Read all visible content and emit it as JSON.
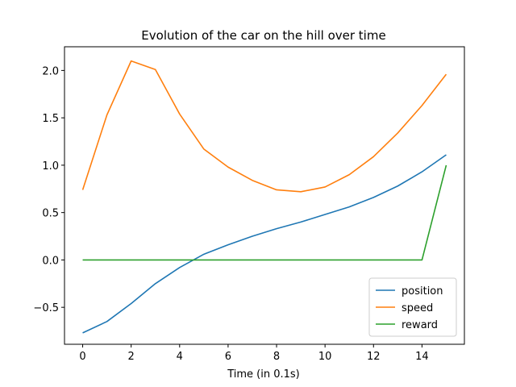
{
  "chart_data": {
    "type": "line",
    "title": "Evolution of the car on the hill over time",
    "xlabel": "Time (in 0.1s)",
    "ylabel": "",
    "xlim": [
      -0.75,
      15.75
    ],
    "ylim": [
      -0.89,
      2.25
    ],
    "xticks": [
      0,
      2,
      4,
      6,
      8,
      10,
      12,
      14
    ],
    "yticks": [
      -0.5,
      0.0,
      0.5,
      1.0,
      1.5,
      2.0
    ],
    "ytick_labels": [
      "−0.5",
      "0.0",
      "0.5",
      "1.0",
      "1.5",
      "2.0"
    ],
    "grid": false,
    "legend_position": "lower-right",
    "x": [
      0,
      1,
      2,
      3,
      4,
      5,
      6,
      7,
      8,
      9,
      10,
      11,
      12,
      13,
      14,
      15
    ],
    "series": [
      {
        "name": "position",
        "color": "#1f77b4",
        "values": [
          -0.77,
          -0.65,
          -0.46,
          -0.25,
          -0.08,
          0.06,
          0.16,
          0.25,
          0.33,
          0.4,
          0.48,
          0.56,
          0.66,
          0.78,
          0.93,
          1.11
        ]
      },
      {
        "name": "speed",
        "color": "#ff7f0e",
        "values": [
          0.74,
          1.53,
          2.1,
          2.01,
          1.54,
          1.17,
          0.98,
          0.84,
          0.74,
          0.72,
          0.77,
          0.9,
          1.09,
          1.34,
          1.63,
          1.96
        ]
      },
      {
        "name": "reward",
        "color": "#2ca02c",
        "values": [
          0,
          0,
          0,
          0,
          0,
          0,
          0,
          0,
          0,
          0,
          0,
          0,
          0,
          0,
          0,
          1.0
        ]
      }
    ]
  }
}
